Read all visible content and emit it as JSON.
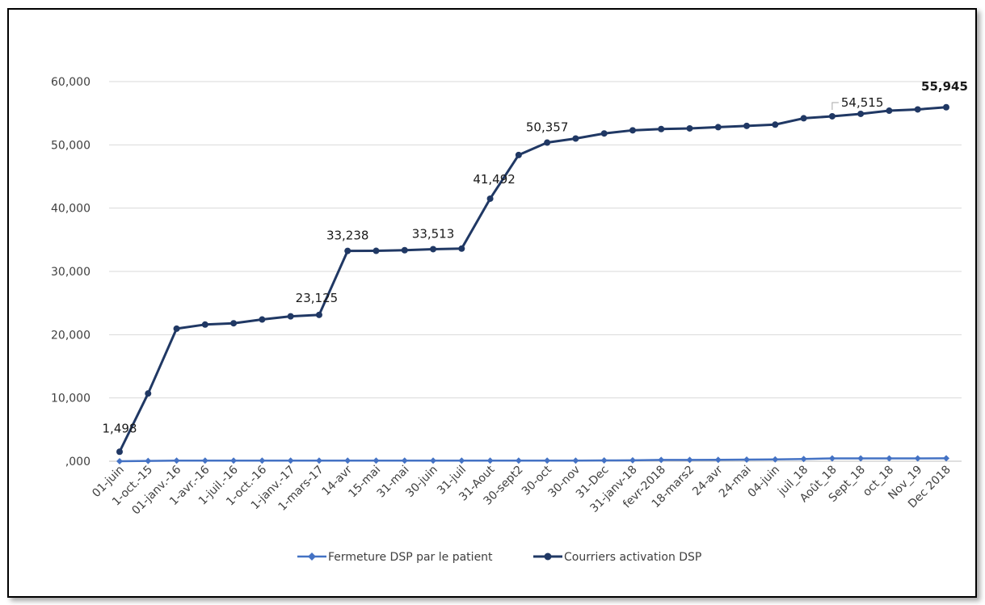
{
  "chart_data": {
    "type": "line",
    "title": "",
    "xlabel": "",
    "ylabel": "",
    "ylim": [
      0,
      60000
    ],
    "grid": true,
    "legend_position": "bottom",
    "y_ticks": [
      "60,000",
      "50,000",
      "40,000",
      "30,000",
      "20,000",
      "10,000",
      ",000"
    ],
    "categories": [
      "01-juin",
      "1-oct.-15",
      "01-janv.-16",
      "1-avr.-16",
      "1-juil.-16",
      "1-oct.-16",
      "1-janv.-17",
      "1-mars-17",
      "14-avr",
      "15-mai",
      "31-mai",
      "30-juin",
      "31-juil",
      "31-Aout",
      "30-sept2",
      "30-oct",
      "30-nov",
      "31-Dec",
      "31-janv-18",
      "fevr-2018",
      "18-mars2",
      "24-avr",
      "24-mai",
      "04-juin",
      "juil_18",
      "Août_18",
      "Sept_18",
      "oct_18",
      "Nov_19",
      "Dec 2018"
    ],
    "series": [
      {
        "name": "Fermeture DSP par le patient",
        "color": "#4472C4",
        "marker": "diamond",
        "values": [
          0,
          50,
          100,
          100,
          100,
          100,
          100,
          100,
          100,
          100,
          100,
          100,
          100,
          100,
          100,
          100,
          100,
          120,
          150,
          200,
          200,
          220,
          250,
          280,
          350,
          450,
          450,
          450,
          450,
          470
        ]
      },
      {
        "name": "Courriers activation DSP",
        "color": "#203864",
        "marker": "circle",
        "values": [
          1498,
          10700,
          20950,
          21600,
          21800,
          22400,
          22900,
          23125,
          33238,
          33250,
          33350,
          33513,
          33600,
          41492,
          48400,
          50357,
          51000,
          51800,
          52300,
          52500,
          52600,
          52800,
          53000,
          53200,
          54200,
          54515,
          54900,
          55400,
          55600,
          55945
        ]
      }
    ],
    "data_labels": [
      {
        "series": 1,
        "index": 0,
        "text": "1,498"
      },
      {
        "series": 1,
        "index": 7,
        "text": "23,125"
      },
      {
        "series": 1,
        "index": 8,
        "text": "33,238"
      },
      {
        "series": 1,
        "index": 11,
        "text": "33,513"
      },
      {
        "series": 1,
        "index": 13,
        "text": "41,492"
      },
      {
        "series": 1,
        "index": 15,
        "text": "50,357"
      },
      {
        "series": 1,
        "index": 25,
        "text": "54,515"
      },
      {
        "series": 1,
        "index": 29,
        "text": "55,945",
        "bold": true
      }
    ]
  }
}
